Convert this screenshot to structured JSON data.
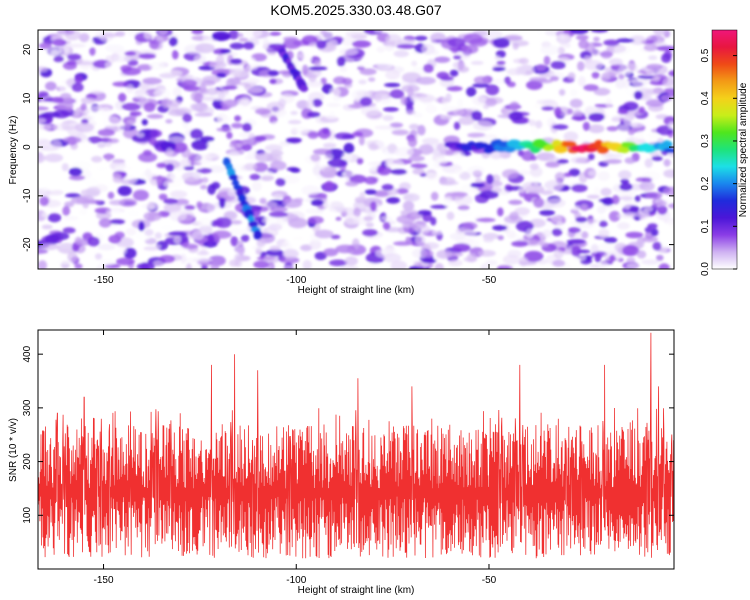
{
  "title": "KOM5.2025.330.03.48.G07",
  "chart_data": [
    {
      "type": "heatmap",
      "name": "spectrogram",
      "xlabel": "Height of straight line (km)",
      "ylabel": "Frequency (Hz)",
      "xlim": [
        -167,
        -2
      ],
      "ylim": [
        -25,
        24
      ],
      "xticks": [
        -150,
        -100,
        -50
      ],
      "yticks": [
        20,
        10,
        0,
        -10,
        -20
      ],
      "grid": false,
      "colorbar": {
        "label": "Normalized spectral amplitude",
        "range": [
          0.0,
          0.56
        ],
        "ticks": [
          0.0,
          0.1,
          0.2,
          0.3,
          0.4,
          0.5
        ],
        "colors": [
          "#ffffff",
          "#cfb2f2",
          "#8a3de6",
          "#4b16d8",
          "#1f2bdc",
          "#1a86ee",
          "#1de0e6",
          "#1ee37a",
          "#4fe61d",
          "#c8ee1a",
          "#f4d11a",
          "#f39a16",
          "#ef4a16",
          "#e81640",
          "#f0167a"
        ]
      },
      "features": [
        {
          "name": "signal-track-main",
          "x_range": [
            -60,
            -2
          ],
          "frequency_hz": 0,
          "peak_amplitude": 0.55,
          "peak_x": -25
        },
        {
          "name": "signal-track-diagonal",
          "x_range": [
            -118,
            -110
          ],
          "frequency_range_hz": [
            -3,
            -18
          ],
          "peak_amplitude": 0.22
        },
        {
          "name": "signal-track-upper",
          "x_range": [
            -104,
            -98
          ],
          "frequency_range_hz": [
            20,
            12
          ],
          "peak_amplitude": 0.15
        }
      ],
      "background_amplitude_range": [
        0.0,
        0.12
      ]
    },
    {
      "type": "line",
      "name": "snr",
      "xlabel": "Height of straight line (km)",
      "ylabel": "SNR (10 * v/v)",
      "xlim": [
        -167,
        -2
      ],
      "ylim": [
        0,
        445
      ],
      "xticks": [
        -150,
        -100,
        -50
      ],
      "yticks": [
        100,
        200,
        300,
        400
      ],
      "grid": false,
      "series": [
        {
          "name": "SNR",
          "color": "#f03030",
          "baseline": 115,
          "typical_range": [
            20,
            250
          ],
          "spikes": [
            [
              -162,
              290
            ],
            [
              -155,
              320
            ],
            [
              -122,
              380
            ],
            [
              -116,
              400
            ],
            [
              -110,
              370
            ],
            [
              -84,
              355
            ],
            [
              -70,
              340
            ],
            [
              -42,
              380
            ],
            [
              -20,
              380
            ],
            [
              -8,
              440
            ],
            [
              -6,
              340
            ]
          ]
        }
      ]
    }
  ]
}
